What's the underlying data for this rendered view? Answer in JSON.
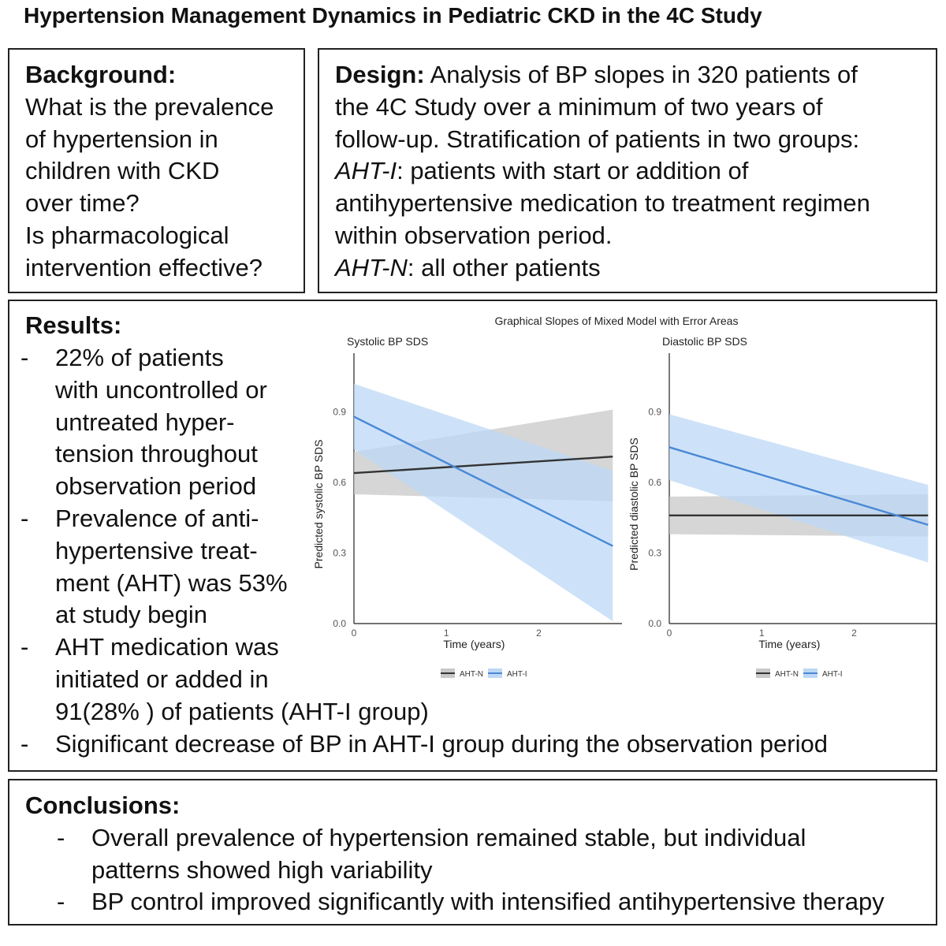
{
  "title": "Hypertension Management Dynamics in Pediatric CKD in the 4C Study",
  "background": {
    "heading": "Background:",
    "lines": [
      "What is the prevalence",
      "of hypertension in",
      "children with CKD",
      "over time?",
      "Is pharmacological",
      "intervention effective?"
    ]
  },
  "design": {
    "heading": "Design:",
    "line1_rest": " Analysis of BP slopes in 320 patients of",
    "line2": "the 4C Study over a minimum of two years of",
    "line3": "follow-up. Stratification of patients in two groups:",
    "ahti_label": "AHT-I",
    "ahti_line": ": patients with start or addition of",
    "line5": "antihypertensive medication to treatment regimen",
    "line6": "within observation period.",
    "ahtn_label": "AHT-N",
    "ahtn_line": ": all other patients"
  },
  "results": {
    "heading": "Results:",
    "items": [
      [
        "22% of patients",
        "with uncontrolled or",
        "untreated hyper-",
        "tension throughout",
        "observation period"
      ],
      [
        "Prevalence of anti-",
        "hypertensive treat-",
        "ment (AHT) was 53%",
        "at study begin"
      ],
      [
        "AHT medication was",
        "initiated or added in"
      ],
      [
        "Significant decrease of BP in AHT-I group during the observation period"
      ]
    ],
    "item3_tail": "91(28% ) of patients (AHT-I group)"
  },
  "conclusions": {
    "heading": "Conclusions:",
    "items": [
      [
        "Overall prevalence of hypertension remained stable, but individual",
        "patterns showed high variability"
      ],
      [
        "BP control improved significantly with intensified antihypertensive therapy"
      ]
    ]
  },
  "colors": {
    "ahtn_line": "#333333",
    "ahtn_band": "#c8c8c8",
    "ahti_line": "#4a88d6",
    "ahti_band": "#bcd8f5"
  },
  "chart_data": {
    "title": "Graphical Slopes of Mixed Model with Error Areas",
    "panels": [
      {
        "type": "line",
        "subtitle": "Systolic BP SDS",
        "xlabel": "Time (years)",
        "ylabel": "Predicted systolic BP SDS",
        "xlim": [
          0,
          2.9
        ],
        "ylim": [
          0.0,
          1.15
        ],
        "xticks": [
          "0",
          "1",
          "2"
        ],
        "yticks": [
          "0.0",
          "0.3",
          "0.6",
          "0.9"
        ],
        "series": [
          {
            "name": "AHT-N",
            "x": [
              0,
              2.8
            ],
            "y": [
              0.64,
              0.71
            ],
            "lower": [
              0.55,
              0.52
            ],
            "upper": [
              0.73,
              0.91
            ]
          },
          {
            "name": "AHT-I",
            "x": [
              0,
              2.8
            ],
            "y": [
              0.88,
              0.33
            ],
            "lower": [
              0.74,
              0.01
            ],
            "upper": [
              1.02,
              0.65
            ]
          }
        ],
        "legend": [
          "AHT-N",
          "AHT-I"
        ]
      },
      {
        "type": "line",
        "subtitle": "Diastolic BP SDS",
        "xlabel": "Time (years)",
        "ylabel": "Predicted diastolic BP SDS",
        "xlim": [
          0,
          2.9
        ],
        "ylim": [
          0.0,
          1.15
        ],
        "xticks": [
          "0",
          "1",
          "2"
        ],
        "yticks": [
          "0.0",
          "0.3",
          "0.6",
          "0.9"
        ],
        "series": [
          {
            "name": "AHT-N",
            "x": [
              0,
              2.8
            ],
            "y": [
              0.46,
              0.46
            ],
            "lower": [
              0.38,
              0.37
            ],
            "upper": [
              0.54,
              0.55
            ]
          },
          {
            "name": "AHT-I",
            "x": [
              0,
              2.8
            ],
            "y": [
              0.75,
              0.42
            ],
            "lower": [
              0.61,
              0.26
            ],
            "upper": [
              0.89,
              0.59
            ]
          }
        ],
        "legend": [
          "AHT-N",
          "AHT-I"
        ]
      }
    ]
  }
}
